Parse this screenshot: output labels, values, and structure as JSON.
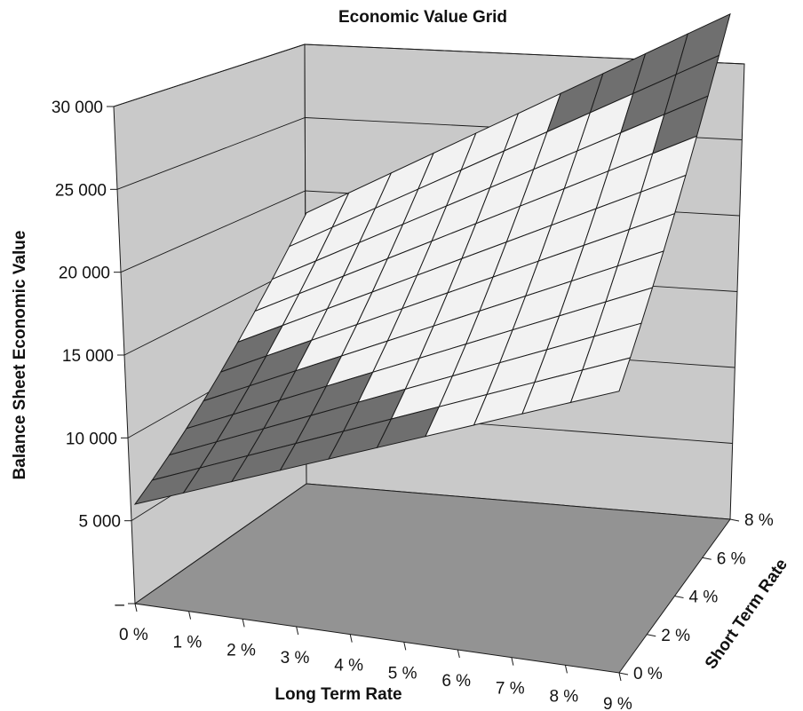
{
  "chart_data": {
    "type": "surface",
    "title": "Economic Value Grid",
    "zlabel": "Balance Sheet Economic Value",
    "xlabel": "Long Term Rate",
    "ylabel": "Short Term Rate",
    "z_ticks": [
      "–",
      "5 000",
      "10 000",
      "15 000",
      "20 000",
      "25 000",
      "30 000"
    ],
    "z_tick_values": [
      0,
      5000,
      10000,
      15000,
      20000,
      25000,
      30000
    ],
    "x_ticks": [
      "0 %",
      "1 %",
      "2 %",
      "3 %",
      "4 %",
      "5 %",
      "6 %",
      "7 %",
      "8 %",
      "9 %"
    ],
    "x_tick_values": [
      0,
      1,
      2,
      3,
      4,
      5,
      6,
      7,
      8,
      9
    ],
    "y_ticks": [
      "0 %",
      "2 %",
      "4 %",
      "6 %",
      "8 %"
    ],
    "y_tick_values": [
      0,
      2,
      4,
      6,
      8
    ],
    "zlim": [
      0,
      30000
    ],
    "grid": true,
    "colors": {
      "surface_light": "#f2f2f2",
      "surface_dark": "#6f6f6f",
      "floor": "#939393",
      "walls": "#c9c9c9",
      "edges": "#1a1a1a"
    },
    "surface": {
      "long_term_rate": [
        0,
        0.9,
        1.8,
        2.7,
        3.6,
        4.5,
        5.4,
        6.3,
        7.2,
        8.1,
        9.0
      ],
      "short_term_rate": [
        0,
        0.8,
        1.6,
        2.4,
        3.2,
        4.0,
        4.8,
        5.6,
        6.4,
        7.2,
        8.0
      ],
      "values": [
        [
          6000,
          7100,
          8200,
          9300,
          10400,
          11500,
          12600,
          13700,
          14800,
          15900,
          17000
        ],
        [
          6800,
          7950,
          9100,
          10250,
          11400,
          12550,
          13700,
          14850,
          16000,
          17150,
          18300
        ],
        [
          7700,
          8900,
          10100,
          11300,
          12500,
          13700,
          14900,
          16100,
          17300,
          18500,
          19700
        ],
        [
          8700,
          9950,
          11200,
          12450,
          13700,
          14950,
          16200,
          17450,
          18700,
          19950,
          21200
        ],
        [
          9800,
          11100,
          12400,
          13700,
          15000,
          16300,
          17600,
          18900,
          20200,
          21500,
          22800
        ],
        [
          11000,
          12350,
          13700,
          15050,
          16400,
          17750,
          19100,
          20450,
          21800,
          23150,
          24500
        ],
        [
          12300,
          13700,
          15100,
          16500,
          17900,
          19300,
          20700,
          22100,
          23500,
          24900,
          26300
        ],
        [
          13700,
          15150,
          16600,
          18050,
          19500,
          20950,
          22400,
          23850,
          25300,
          26750,
          28200
        ],
        [
          15200,
          16700,
          18200,
          19700,
          21200,
          22700,
          24200,
          25700,
          27200,
          28700,
          30200
        ],
        [
          16800,
          18350,
          19900,
          21450,
          23000,
          24550,
          26100,
          27650,
          29200,
          30750,
          32300
        ],
        [
          18500,
          20100,
          21700,
          23300,
          24900,
          26500,
          28100,
          29700,
          31300,
          32900,
          34500
        ]
      ]
    }
  }
}
